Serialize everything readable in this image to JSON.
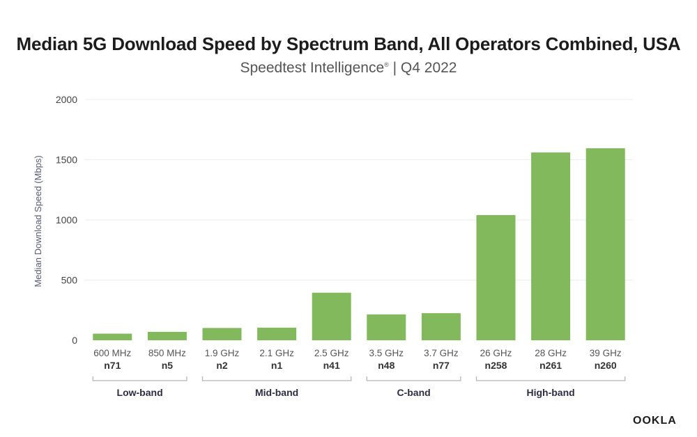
{
  "chart_data": {
    "type": "bar",
    "title": "Median 5G Download Speed by Spectrum Band, All Operators Combined, USA",
    "subtitle_main": "Speedtest Intelligence",
    "subtitle_mark": "®",
    "subtitle_rest": " | Q4 2022",
    "ylabel": "Median Download Speed (Mbps)",
    "xlabel": "",
    "ylim": [
      0,
      2000
    ],
    "yticks": [
      "0",
      "500",
      "1000",
      "1500",
      "2000"
    ],
    "grid": true,
    "bar_color": "#82b95c",
    "categories": [
      {
        "freq": "600 MHz",
        "band": "n71"
      },
      {
        "freq": "850 MHz",
        "band": "n5"
      },
      {
        "freq": "1.9 GHz",
        "band": "n2"
      },
      {
        "freq": "2.1 GHz",
        "band": "n1"
      },
      {
        "freq": "2.5 GHz",
        "band": "n41"
      },
      {
        "freq": "3.5 GHz",
        "band": "n48"
      },
      {
        "freq": "3.7 GHz",
        "band": "n77"
      },
      {
        "freq": "26 GHz",
        "band": "n258"
      },
      {
        "freq": "28 GHz",
        "band": "n261"
      },
      {
        "freq": "39 GHz",
        "band": "n260"
      }
    ],
    "values": [
      55,
      70,
      102,
      105,
      395,
      215,
      225,
      1040,
      1560,
      1595
    ],
    "groups": [
      {
        "label": "Low-band",
        "start": 0,
        "end": 1
      },
      {
        "label": "Mid-band",
        "start": 2,
        "end": 4
      },
      {
        "label": "C-band",
        "start": 5,
        "end": 6
      },
      {
        "label": "High-band",
        "start": 7,
        "end": 9
      }
    ]
  },
  "logo": "OOKLA"
}
